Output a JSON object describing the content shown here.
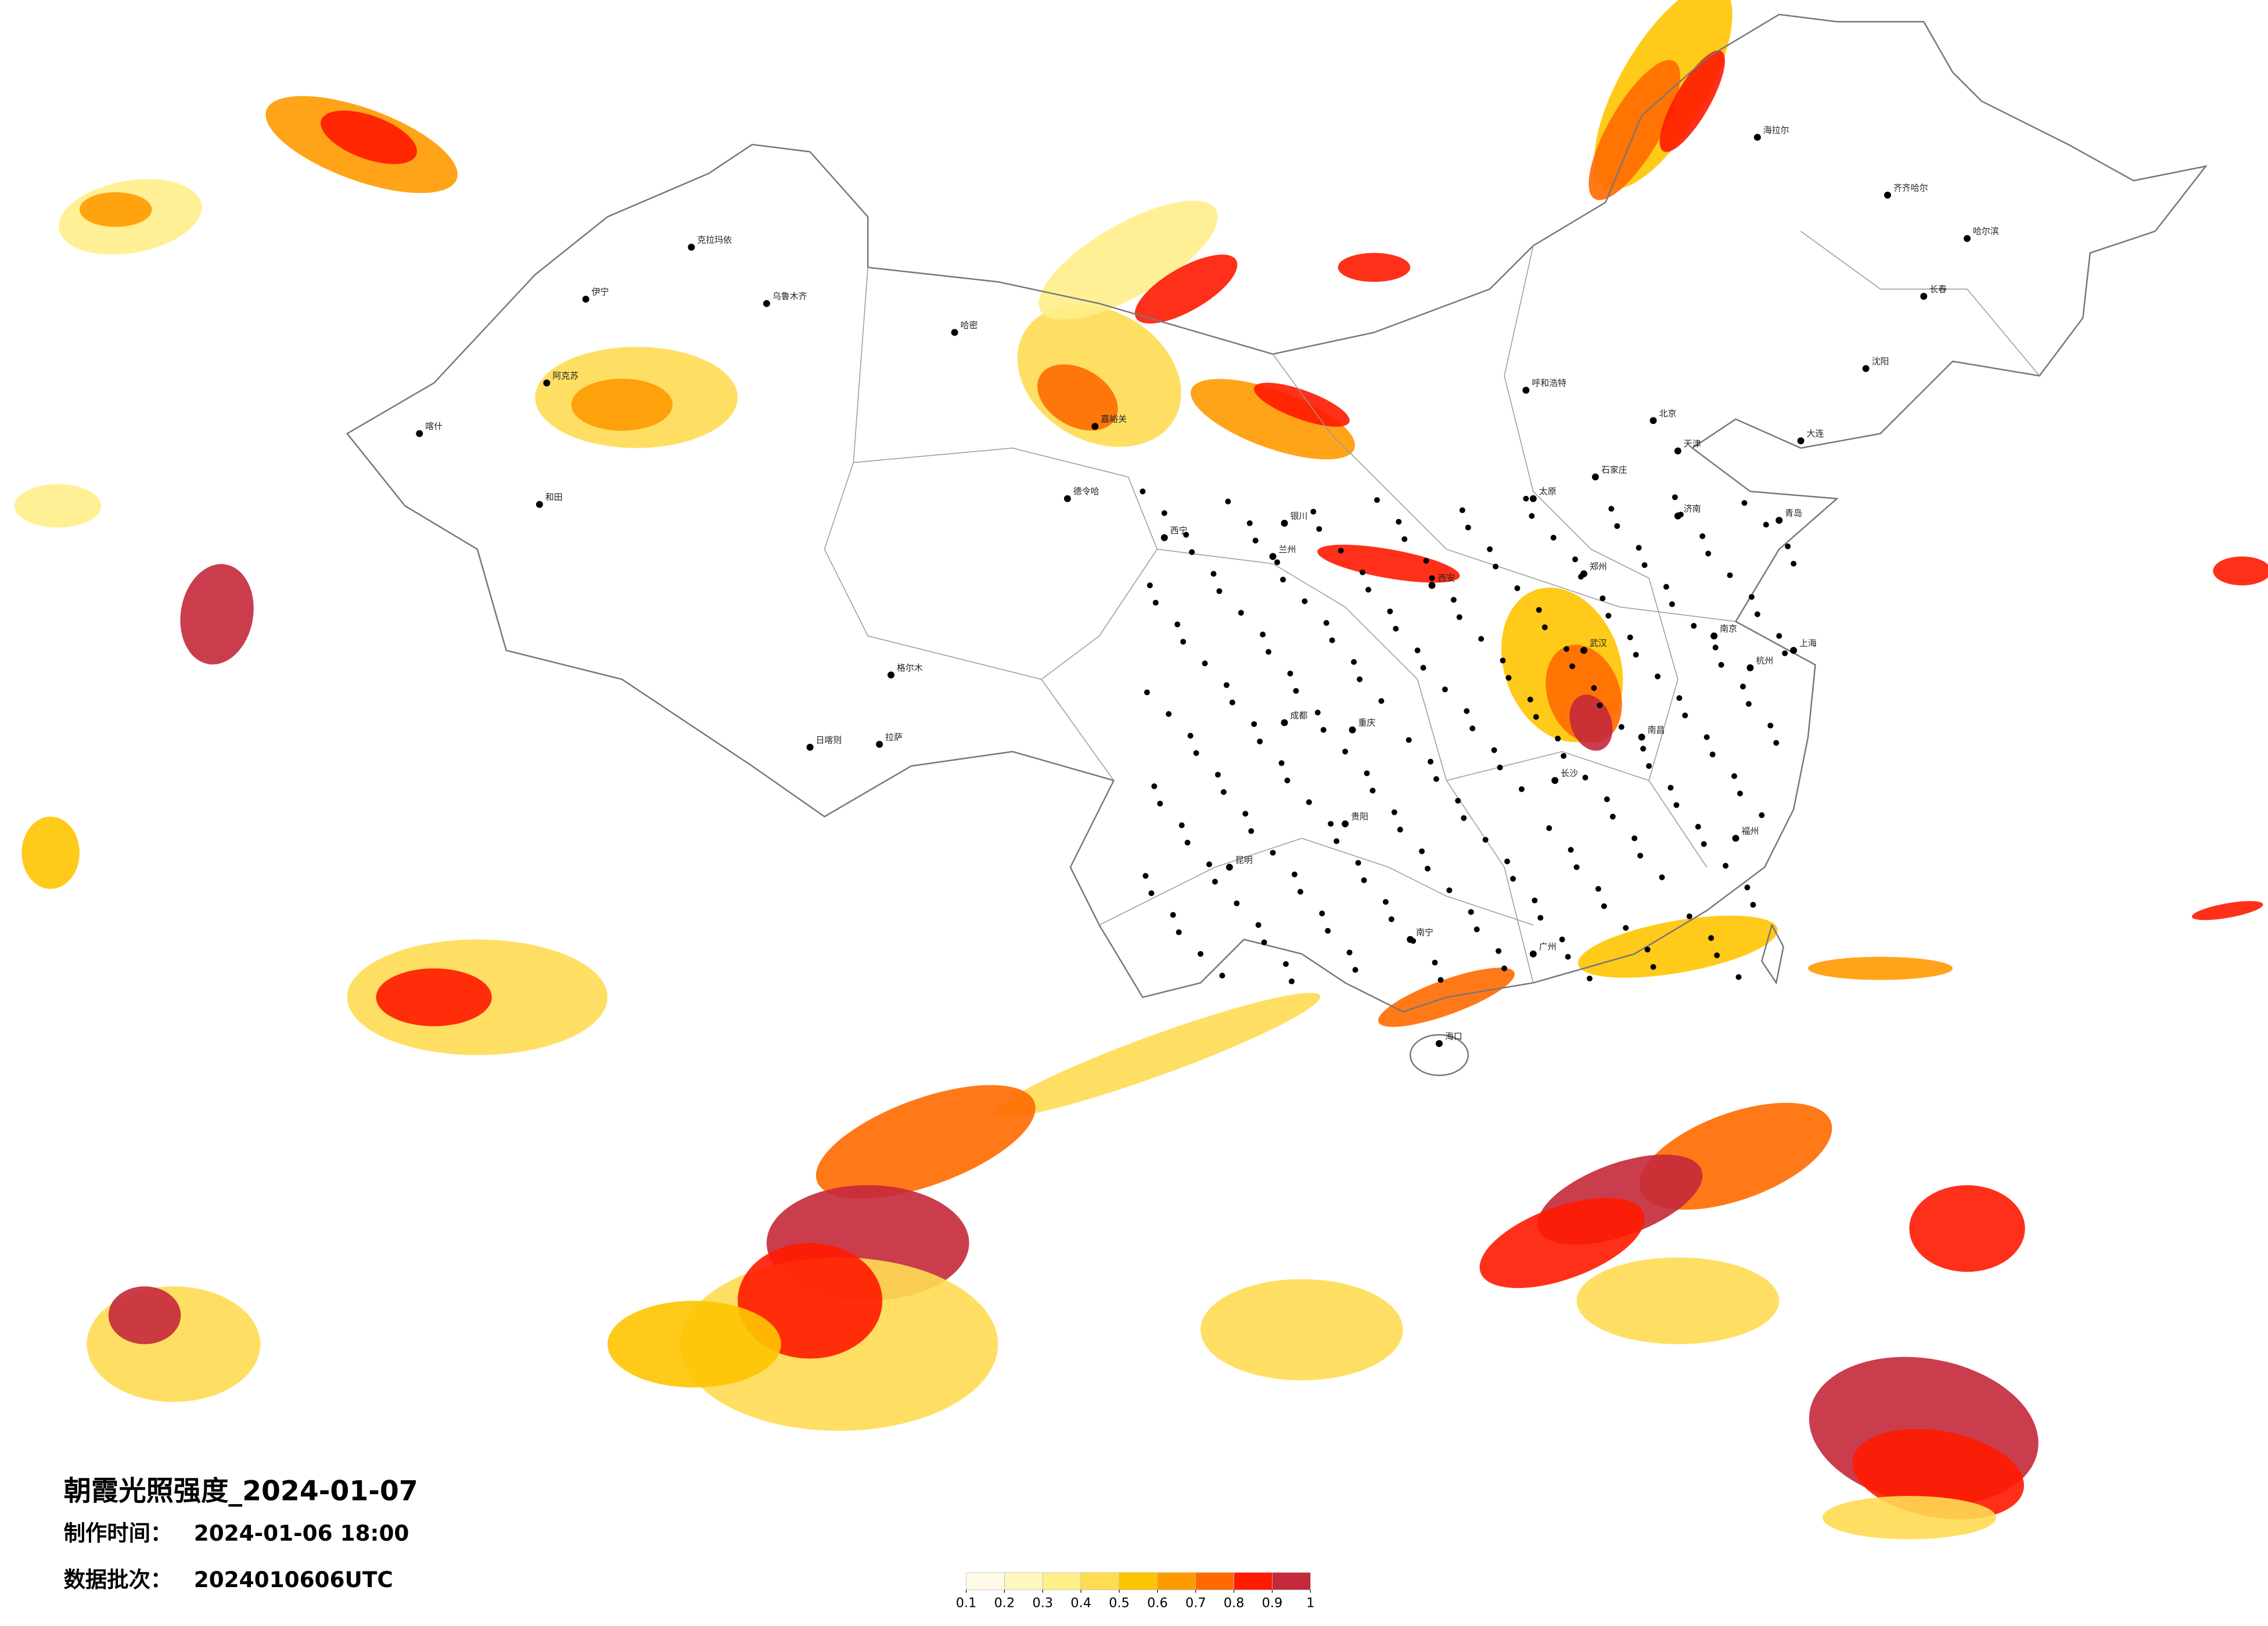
{
  "title": "朝霞光照强度_2024-01-07",
  "made_time_label": "制作时间：",
  "made_time": "2024-01-06 18:00",
  "batch_label": "数据批次：",
  "batch": "2024010606UTC",
  "colorbar": {
    "ticks": [
      0.1,
      0.2,
      0.3,
      0.4,
      0.5,
      0.6,
      0.7,
      0.8,
      0.9,
      1
    ],
    "colors": [
      "#fffbe8",
      "#fff6c0",
      "#ffee8a",
      "#ffdc52",
      "#ffc400",
      "#ff9a00",
      "#ff6a00",
      "#ff1a00",
      "#c4283a"
    ]
  },
  "cities": [
    "克拉玛依",
    "乌鲁木齐",
    "伊宁",
    "阿克苏",
    "喀什",
    "和田",
    "哈密",
    "嘉峪关",
    "德令哈",
    "格尔木",
    "拉萨",
    "日喀则",
    "西宁",
    "兰州",
    "银川",
    "呼和浩特",
    "北京",
    "天津",
    "石家庄",
    "太原",
    "济南",
    "郑州",
    "西安",
    "成都",
    "重庆",
    "武汉",
    "长沙",
    "南昌",
    "南京",
    "上海",
    "杭州",
    "福州",
    "广州",
    "南宁",
    "海口",
    "昆明",
    "贵阳",
    "哈尔滨",
    "长春",
    "沈阳",
    "大连",
    "青岛",
    "海拉尔",
    "齐齐哈尔"
  ]
}
